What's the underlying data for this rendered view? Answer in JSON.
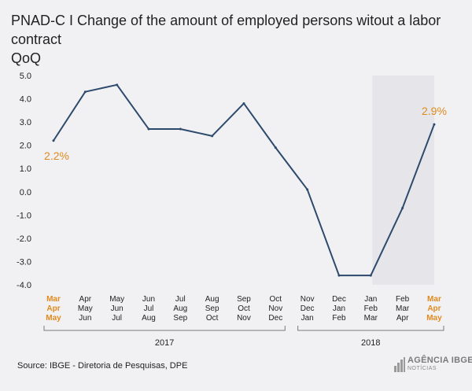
{
  "header": {
    "title_line1": "PNAD-C I Change of the amount of employed persons witout a labor contract",
    "title_line2": "QoQ"
  },
  "footer": {
    "source": "Source: IBGE - Diretoria de Pesquisas, DPE",
    "logo_text": "AGÊNCIA IBGE",
    "logo_sub": "NOTÍCIAS"
  },
  "colors": {
    "line": "#2d4a6d",
    "highlight": "#e08a1e",
    "shade": "#e5e5ea",
    "background": "#f1f1f3",
    "text": "#222222"
  },
  "chart_data": {
    "type": "line",
    "title": "PNAD-C I Change of the amount of employed persons witout a labor contract QoQ",
    "xlabel": "",
    "ylabel": "",
    "ylim": [
      -4.0,
      5.0
    ],
    "yticks": [
      "5.0",
      "4.0",
      "3.0",
      "2.0",
      "1.0",
      "0.0",
      "-1.0",
      "-2.0",
      "-3.0",
      "-4.0"
    ],
    "categories": [
      [
        "Mar",
        "Apr",
        "May"
      ],
      [
        "Apr",
        "May",
        "Jun"
      ],
      [
        "May",
        "Jun",
        "Jul"
      ],
      [
        "Jun",
        "Jul",
        "Aug"
      ],
      [
        "Jul",
        "Aug",
        "Sep"
      ],
      [
        "Aug",
        "Sep",
        "Oct"
      ],
      [
        "Sep",
        "Oct",
        "Nov"
      ],
      [
        "Oct",
        "Nov",
        "Dec"
      ],
      [
        "Nov",
        "Dec",
        "Jan"
      ],
      [
        "Dec",
        "Jan",
        "Feb"
      ],
      [
        "Jan",
        "Feb",
        "Mar"
      ],
      [
        "Feb",
        "Mar",
        "Apr"
      ],
      [
        "Mar",
        "Apr",
        "May"
      ]
    ],
    "values": [
      2.2,
      4.3,
      4.6,
      2.7,
      2.7,
      2.4,
      3.8,
      1.9,
      0.1,
      -3.6,
      -3.6,
      -0.7,
      2.9
    ],
    "highlighted_categories": [
      0,
      12
    ],
    "shaded_range": [
      10,
      12
    ],
    "groups": [
      {
        "label": "2017",
        "from": 0,
        "to": 7
      },
      {
        "label": "2018",
        "from": 8,
        "to": 12
      }
    ],
    "annotations": [
      {
        "index": 0,
        "text": "2.2%",
        "position": "below"
      },
      {
        "index": 12,
        "text": "2.9%",
        "position": "above"
      }
    ],
    "grid": false,
    "legend": "none"
  }
}
